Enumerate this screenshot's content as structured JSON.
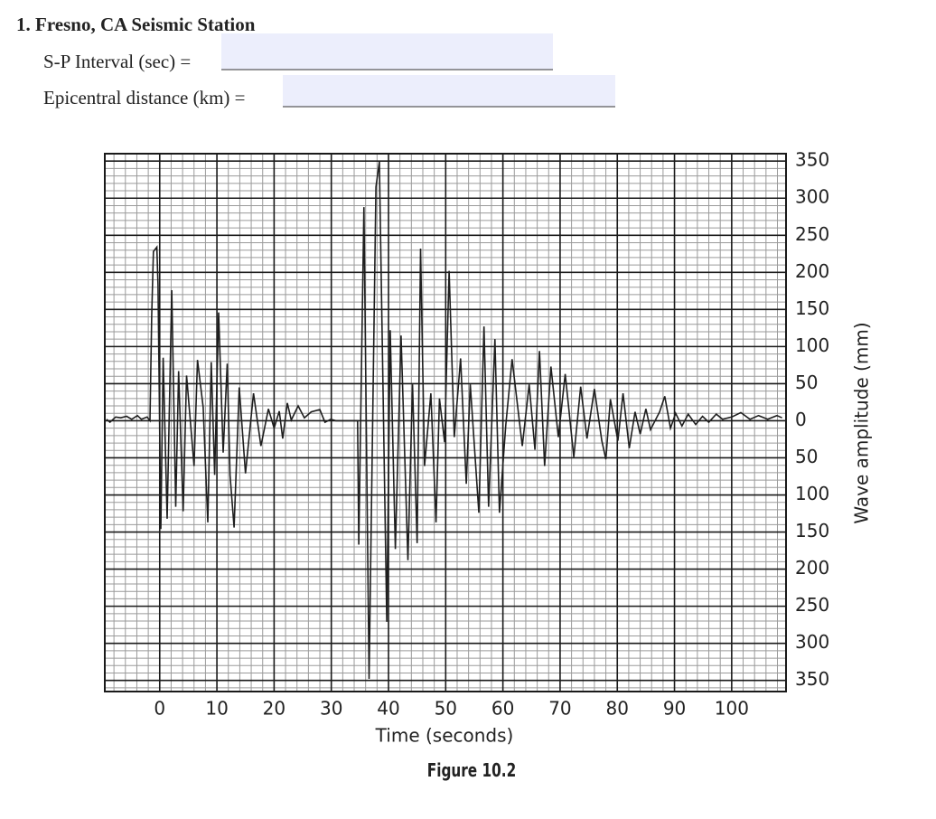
{
  "header": {
    "question": "1. Fresno, CA Seismic Station",
    "fields": [
      {
        "label": "S-P Interval (sec) ="
      },
      {
        "label": "Epicentral distance (km) ="
      }
    ]
  },
  "chart_data": {
    "type": "line",
    "xlabel": "Time (seconds)",
    "ylabel": "Wave amplitude (mm)",
    "x": [
      -9.3,
      -8.7,
      -7.7,
      -6.8,
      -5.8,
      -4.9,
      -3.9,
      -3.2,
      -2.2,
      -1.7,
      -1.4,
      -1.1,
      -0.5,
      -0.3,
      0.2,
      0.6,
      1.3,
      2.1,
      2.8,
      3.3,
      4.1,
      4.7,
      6,
      6.6,
      7.6,
      8.4,
      9,
      9.6,
      10.3,
      11.1,
      11.8,
      12.3,
      13,
      13.9,
      15,
      16.4,
      17.7,
      19,
      20,
      20.9,
      21.5,
      22.3,
      23,
      24.2,
      25.3,
      26.5,
      28,
      28.9,
      29.9,
      30.8,
      32,
      33.6,
      34.6,
      34.8,
      35.7,
      36.6,
      37.8,
      38.4,
      39.7,
      40.3,
      41.2,
      42.2,
      43.4,
      44.2,
      45,
      45.6,
      46.3,
      47.4,
      48.3,
      48.9,
      49.8,
      50.6,
      51.5,
      52.6,
      53.6,
      54.3,
      55.8,
      56.7,
      57.5,
      58.6,
      59.4,
      60.5,
      61.6,
      63.4,
      64.6,
      65.6,
      66.4,
      67.3,
      68.4,
      69.7,
      70.9,
      72.4,
      73.6,
      74.7,
      76,
      77.3,
      78,
      78.8,
      80.1,
      81,
      82.1,
      83.1,
      84,
      85,
      85.8,
      87.4,
      88.3,
      89.3,
      90.2,
      91.3,
      92.4,
      93.7,
      94.9,
      96,
      97.3,
      98.4,
      100,
      101.6,
      103.2,
      104.7,
      106.3,
      107.9,
      108.8
    ],
    "values": [
      2,
      -2,
      5,
      4,
      6,
      2,
      7,
      2,
      5,
      0,
      141,
      228,
      234,
      183,
      -146,
      85,
      -132,
      176,
      -116,
      67,
      -122,
      61,
      -61,
      82,
      18,
      -137,
      79,
      -73,
      146,
      -43,
      77,
      -73,
      -144,
      45,
      -71,
      37,
      -34,
      16,
      -10,
      13,
      -24,
      24,
      1,
      20,
      4,
      12,
      15,
      -2,
      2,
      0,
      0,
      0,
      0,
      -167,
      288,
      -348,
      315,
      349,
      -271,
      122,
      -173,
      115,
      -188,
      49,
      -165,
      232,
      -61,
      37,
      -137,
      30,
      -29,
      202,
      -22,
      84,
      -85,
      49,
      -124,
      127,
      -116,
      110,
      -124,
      -6,
      83,
      -34,
      49,
      -39,
      94,
      -61,
      73,
      -22,
      63,
      -49,
      46,
      -24,
      43,
      -27,
      -52,
      29,
      -27,
      37,
      -37,
      12,
      -18,
      16,
      -12,
      12,
      33,
      -10,
      10,
      -7,
      9,
      -5,
      6,
      -2,
      9,
      2,
      5,
      11,
      2,
      7,
      2,
      7,
      4
    ],
    "color": "#1e1e1e",
    "xlim": [
      -9.6,
      109.5
    ],
    "ylim": [
      -365,
      360
    ],
    "xticks": [
      0,
      10,
      20,
      30,
      40,
      50,
      60,
      70,
      80,
      90,
      100
    ],
    "yticks": [
      350,
      300,
      250,
      200,
      150,
      100,
      50,
      0,
      {
        "value": -50,
        "label": "50"
      },
      {
        "value": -100,
        "label": "100"
      },
      {
        "value": -150,
        "label": "150"
      },
      {
        "value": -200,
        "label": "200"
      },
      {
        "value": -250,
        "label": "250"
      },
      {
        "value": -300,
        "label": "300"
      },
      {
        "value": -350,
        "label": "350"
      }
    ],
    "grid": true,
    "y_axis_side": "right"
  },
  "caption": "Figure 10.2"
}
